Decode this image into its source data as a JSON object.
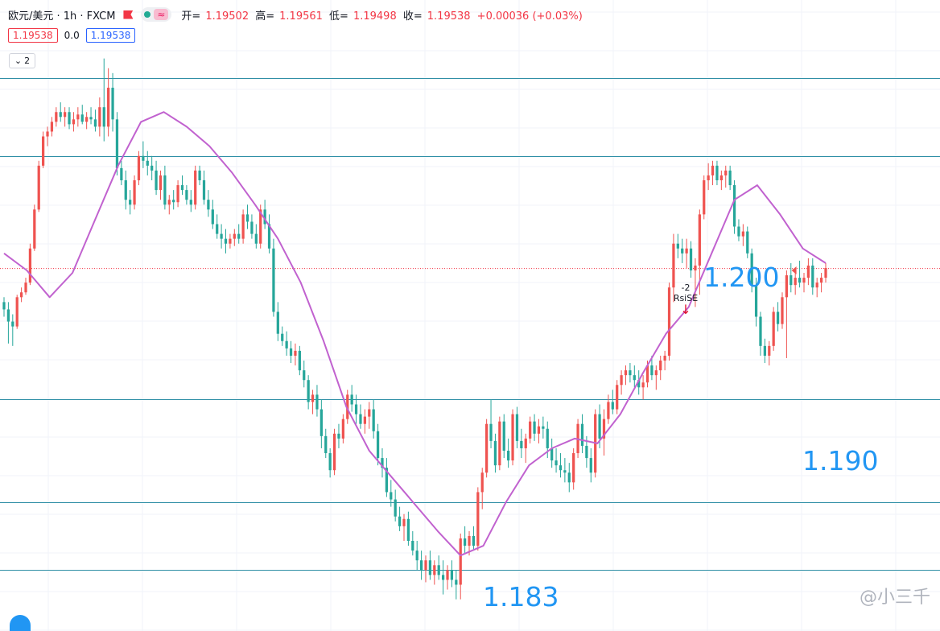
{
  "header": {
    "symbol": "欧元/美元 · 1h · FXCM",
    "open_label": "开=",
    "open": "1.19502",
    "high_label": "高=",
    "high": "1.19561",
    "low_label": "低=",
    "low": "1.19498",
    "close_label": "收=",
    "close": "1.19538",
    "change": "+0.00036 (+0.03%)",
    "bid": "1.19538",
    "spread": "0.0",
    "ask": "1.19538",
    "indicator_count": "2"
  },
  "annotations": {
    "level_1200": "1.200",
    "level_1190": "1.190",
    "level_1183": "1.183",
    "signal_value": "-2",
    "signal_name": "RsiSE",
    "watermark": "@小三千"
  },
  "colors": {
    "up": "#ef5350",
    "down": "#26a69a",
    "ma": "#c162cf",
    "hline": "#2f8fa6",
    "price_line": "#f23645",
    "label": "#2196f3"
  },
  "chart_data": {
    "type": "candlestick",
    "symbol": "EUR/USD",
    "interval": "1h",
    "horizontal_levels": [
      1.2032,
      1.2,
      1.19,
      1.1858,
      1.183
    ],
    "current_price": 1.19538,
    "ylim": [
      1.1805,
      1.2064
    ],
    "grid": true,
    "ma_series": [
      1.196,
      1.1953,
      1.1942,
      1.1952,
      1.1974,
      1.1996,
      1.2014,
      1.2018,
      1.2012,
      1.2004,
      1.1993,
      1.198,
      1.1966,
      1.1948,
      1.1924,
      1.1897,
      1.1879,
      1.1868,
      1.1857,
      1.1846,
      1.1836,
      1.184,
      1.1858,
      1.1873,
      1.188,
      1.1884,
      1.1882,
      1.1894,
      1.1911,
      1.1927,
      1.1938,
      1.196,
      1.1982,
      1.1988,
      1.1976,
      1.1962,
      1.1956
    ],
    "candles_ohlc": [
      [
        1.194,
        1.1942,
        1.1934,
        1.1937
      ],
      [
        1.1937,
        1.194,
        1.1923,
        1.1932
      ],
      [
        1.1932,
        1.1935,
        1.1922,
        1.193
      ],
      [
        1.193,
        1.1943,
        1.1929,
        1.1942
      ],
      [
        1.1942,
        1.1946,
        1.194,
        1.1944
      ],
      [
        1.1944,
        1.195,
        1.1943,
        1.1948
      ],
      [
        1.1948,
        1.1964,
        1.1947,
        1.1962
      ],
      [
        1.1962,
        1.198,
        1.1961,
        1.1978
      ],
      [
        1.1978,
        1.1998,
        1.1977,
        1.1996
      ],
      [
        1.1996,
        1.201,
        1.1995,
        1.2008
      ],
      [
        1.2008,
        1.2012,
        1.2004,
        1.201
      ],
      [
        1.201,
        1.2016,
        1.2008,
        1.2014
      ],
      [
        1.2014,
        1.202,
        1.2012,
        1.2018
      ],
      [
        1.2018,
        1.2022,
        1.2014,
        1.2016
      ],
      [
        1.2016,
        1.202,
        1.2012,
        1.2018
      ],
      [
        1.2018,
        1.202,
        1.2011,
        1.2013
      ],
      [
        1.2013,
        1.2018,
        1.201,
        1.2015
      ],
      [
        1.2015,
        1.202,
        1.2012,
        1.2017
      ],
      [
        1.2017,
        1.2021,
        1.2013,
        1.2014
      ],
      [
        1.2014,
        1.2018,
        1.2011,
        1.2016
      ],
      [
        1.2016,
        1.202,
        1.2013,
        1.2015
      ],
      [
        1.2015,
        1.2019,
        1.201,
        1.2012
      ],
      [
        1.2012,
        1.2024,
        1.2008,
        1.202
      ],
      [
        1.202,
        1.204,
        1.2006,
        1.2012
      ],
      [
        1.2012,
        1.2036,
        1.2008,
        1.2028
      ],
      [
        1.2028,
        1.2034,
        1.201,
        1.2015
      ],
      [
        1.2015,
        1.2018,
        1.1992,
        1.1995
      ],
      [
        1.1995,
        1.1998,
        1.1988,
        1.199
      ],
      [
        1.199,
        1.1994,
        1.1978,
        1.1982
      ],
      [
        1.1982,
        1.1986,
        1.1976,
        1.198
      ],
      [
        1.198,
        1.1992,
        1.1978,
        1.199
      ],
      [
        1.199,
        1.2002,
        1.1988,
        1.2
      ],
      [
        1.2,
        1.2006,
        1.1995,
        1.1998
      ],
      [
        1.1998,
        1.2002,
        1.1992,
        1.1996
      ],
      [
        1.1996,
        1.2,
        1.199,
        1.1994
      ],
      [
        1.1994,
        1.1998,
        1.1984,
        1.1986
      ],
      [
        1.1986,
        1.1994,
        1.1982,
        1.1992
      ],
      [
        1.1992,
        1.1996,
        1.1978,
        1.198
      ],
      [
        1.198,
        1.1984,
        1.1976,
        1.1982
      ],
      [
        1.1982,
        1.1986,
        1.1978,
        1.1981
      ],
      [
        1.1981,
        1.199,
        1.1979,
        1.1988
      ],
      [
        1.1988,
        1.1992,
        1.1984,
        1.1986
      ],
      [
        1.1986,
        1.1988,
        1.198,
        1.1982
      ],
      [
        1.1982,
        1.1986,
        1.1977,
        1.198
      ],
      [
        1.198,
        1.1996,
        1.1978,
        1.1994
      ],
      [
        1.1994,
        1.1996,
        1.1988,
        1.199
      ],
      [
        1.199,
        1.1994,
        1.198,
        1.1982
      ],
      [
        1.1982,
        1.1986,
        1.1975,
        1.1978
      ],
      [
        1.1978,
        1.1982,
        1.197,
        1.1972
      ],
      [
        1.1972,
        1.1976,
        1.1966,
        1.1968
      ],
      [
        1.1968,
        1.1972,
        1.1962,
        1.1966
      ],
      [
        1.1966,
        1.197,
        1.196,
        1.1964
      ],
      [
        1.1964,
        1.1968,
        1.1962,
        1.1966
      ],
      [
        1.1966,
        1.197,
        1.1963,
        1.1968
      ],
      [
        1.1968,
        1.1972,
        1.1964,
        1.1966
      ],
      [
        1.1966,
        1.1978,
        1.1964,
        1.1976
      ],
      [
        1.1976,
        1.198,
        1.197,
        1.1973
      ],
      [
        1.1973,
        1.1976,
        1.1966,
        1.1968
      ],
      [
        1.1968,
        1.1972,
        1.1962,
        1.1964
      ],
      [
        1.1964,
        1.198,
        1.1962,
        1.1978
      ],
      [
        1.1978,
        1.1982,
        1.197,
        1.1972
      ],
      [
        1.1972,
        1.1976,
        1.196,
        1.1962
      ],
      [
        1.1962,
        1.1966,
        1.1934,
        1.1936
      ],
      [
        1.1936,
        1.194,
        1.1924,
        1.1927
      ],
      [
        1.1927,
        1.193,
        1.1922,
        1.1924
      ],
      [
        1.1924,
        1.1928,
        1.1918,
        1.1921
      ],
      [
        1.1921,
        1.1924,
        1.1915,
        1.1918
      ],
      [
        1.1918,
        1.1923,
        1.1914,
        1.192
      ],
      [
        1.192,
        1.1922,
        1.191,
        1.1912
      ],
      [
        1.1912,
        1.1916,
        1.1905,
        1.1908
      ],
      [
        1.1908,
        1.191,
        1.1896,
        1.1899
      ],
      [
        1.1899,
        1.1904,
        1.1894,
        1.1902
      ],
      [
        1.1902,
        1.1906,
        1.1893,
        1.1896
      ],
      [
        1.1896,
        1.19,
        1.188,
        1.1885
      ],
      [
        1.1885,
        1.1888,
        1.1876,
        1.1878
      ],
      [
        1.1878,
        1.188,
        1.1868,
        1.1871
      ],
      [
        1.1871,
        1.1888,
        1.1869,
        1.1886
      ],
      [
        1.1886,
        1.189,
        1.188,
        1.1884
      ],
      [
        1.1884,
        1.1894,
        1.1882,
        1.1892
      ],
      [
        1.1892,
        1.1904,
        1.189,
        1.1902
      ],
      [
        1.1902,
        1.1906,
        1.1895,
        1.1898
      ],
      [
        1.1898,
        1.1902,
        1.189,
        1.1894
      ],
      [
        1.1894,
        1.1898,
        1.1888,
        1.189
      ],
      [
        1.189,
        1.1896,
        1.1886,
        1.1893
      ],
      [
        1.1893,
        1.1899,
        1.1888,
        1.1896
      ],
      [
        1.1896,
        1.19,
        1.1884,
        1.1887
      ],
      [
        1.1887,
        1.189,
        1.1873,
        1.1876
      ],
      [
        1.1876,
        1.188,
        1.1868,
        1.1872
      ],
      [
        1.1872,
        1.1876,
        1.186,
        1.1862
      ],
      [
        1.1862,
        1.1867,
        1.1856,
        1.1859
      ],
      [
        1.1859,
        1.1863,
        1.185,
        1.1852
      ],
      [
        1.1852,
        1.1856,
        1.1846,
        1.1848
      ],
      [
        1.1848,
        1.1853,
        1.1842,
        1.1851
      ],
      [
        1.1851,
        1.1854,
        1.184,
        1.1842
      ],
      [
        1.1842,
        1.1846,
        1.1836,
        1.1838
      ],
      [
        1.1838,
        1.1842,
        1.183,
        1.1834
      ],
      [
        1.1834,
        1.1838,
        1.1826,
        1.183
      ],
      [
        1.183,
        1.1836,
        1.1825,
        1.1834
      ],
      [
        1.1834,
        1.1838,
        1.1826,
        1.1828
      ],
      [
        1.1828,
        1.1834,
        1.1824,
        1.1832
      ],
      [
        1.1832,
        1.1836,
        1.1826,
        1.1828
      ],
      [
        1.1828,
        1.1834,
        1.182,
        1.1826
      ],
      [
        1.1826,
        1.1832,
        1.1822,
        1.183
      ],
      [
        1.183,
        1.1834,
        1.1823,
        1.1826
      ],
      [
        1.1826,
        1.183,
        1.1818,
        1.1824
      ],
      [
        1.1824,
        1.1845,
        1.1818,
        1.1843
      ],
      [
        1.1843,
        1.1848,
        1.1837,
        1.184
      ],
      [
        1.184,
        1.1846,
        1.1836,
        1.1844
      ],
      [
        1.1844,
        1.1848,
        1.1838,
        1.184
      ],
      [
        1.184,
        1.1864,
        1.1838,
        1.1862
      ],
      [
        1.1862,
        1.1872,
        1.1855,
        1.187
      ],
      [
        1.187,
        1.1892,
        1.1868,
        1.189
      ],
      [
        1.189,
        1.19,
        1.188,
        1.1883
      ],
      [
        1.1883,
        1.1886,
        1.187,
        1.1873
      ],
      [
        1.1873,
        1.1893,
        1.1871,
        1.1891
      ],
      [
        1.1891,
        1.1894,
        1.1876,
        1.1879
      ],
      [
        1.1879,
        1.1884,
        1.1872,
        1.1875
      ],
      [
        1.1875,
        1.1896,
        1.1873,
        1.1894
      ],
      [
        1.1894,
        1.1897,
        1.188,
        1.1883
      ],
      [
        1.1883,
        1.1888,
        1.1876,
        1.188
      ],
      [
        1.188,
        1.1886,
        1.1874,
        1.1884
      ],
      [
        1.1884,
        1.1893,
        1.1882,
        1.1891
      ],
      [
        1.1891,
        1.1894,
        1.1883,
        1.1886
      ],
      [
        1.1886,
        1.1892,
        1.1882,
        1.1889
      ],
      [
        1.1889,
        1.1893,
        1.1884,
        1.1888
      ],
      [
        1.1888,
        1.1891,
        1.1876,
        1.188
      ],
      [
        1.188,
        1.1884,
        1.1872,
        1.1875
      ],
      [
        1.1875,
        1.188,
        1.187,
        1.1873
      ],
      [
        1.1873,
        1.1878,
        1.1868,
        1.1871
      ],
      [
        1.1871,
        1.1876,
        1.1866,
        1.187
      ],
      [
        1.187,
        1.1874,
        1.1862,
        1.1866
      ],
      [
        1.1866,
        1.188,
        1.1863,
        1.1878
      ],
      [
        1.1878,
        1.1892,
        1.1876,
        1.189
      ],
      [
        1.189,
        1.1894,
        1.1878,
        1.1881
      ],
      [
        1.1881,
        1.1885,
        1.1872,
        1.1876
      ],
      [
        1.1876,
        1.188,
        1.1866,
        1.187
      ],
      [
        1.187,
        1.1896,
        1.1868,
        1.1894
      ],
      [
        1.1894,
        1.1898,
        1.188,
        1.1884
      ],
      [
        1.1884,
        1.1896,
        1.1877,
        1.1892
      ],
      [
        1.1892,
        1.1902,
        1.189,
        1.1899
      ],
      [
        1.1899,
        1.1904,
        1.1894,
        1.1896
      ],
      [
        1.1896,
        1.1908,
        1.1894,
        1.1906
      ],
      [
        1.1906,
        1.1912,
        1.1902,
        1.191
      ],
      [
        1.191,
        1.1914,
        1.1906,
        1.1912
      ],
      [
        1.1912,
        1.1915,
        1.1907,
        1.191
      ],
      [
        1.191,
        1.1914,
        1.1905,
        1.1908
      ],
      [
        1.1908,
        1.1912,
        1.1902,
        1.1905
      ],
      [
        1.1905,
        1.191,
        1.19,
        1.1907
      ],
      [
        1.1907,
        1.1916,
        1.1905,
        1.1914
      ],
      [
        1.1914,
        1.1918,
        1.1908,
        1.191
      ],
      [
        1.191,
        1.1914,
        1.1904,
        1.1912
      ],
      [
        1.1912,
        1.1918,
        1.1908,
        1.1916
      ],
      [
        1.1916,
        1.192,
        1.1912,
        1.1918
      ],
      [
        1.1918,
        1.1948,
        1.1916,
        1.1946
      ],
      [
        1.1946,
        1.1968,
        1.194,
        1.1964
      ],
      [
        1.1964,
        1.1968,
        1.1958,
        1.1962
      ],
      [
        1.1962,
        1.1966,
        1.1956,
        1.196
      ],
      [
        1.196,
        1.1966,
        1.1954,
        1.1962
      ],
      [
        1.1962,
        1.1965,
        1.195,
        1.1953
      ],
      [
        1.1953,
        1.1958,
        1.1938,
        1.1955
      ],
      [
        1.1955,
        1.1978,
        1.1943,
        1.1976
      ],
      [
        1.1976,
        1.1992,
        1.1974,
        1.199
      ],
      [
        1.199,
        1.1997,
        1.1986,
        1.1992
      ],
      [
        1.1992,
        1.1998,
        1.1988,
        1.1996
      ],
      [
        1.1996,
        1.1998,
        1.1988,
        1.199
      ],
      [
        1.199,
        1.1994,
        1.1986,
        1.1992
      ],
      [
        1.1992,
        1.1996,
        1.1987,
        1.1994
      ],
      [
        1.1994,
        1.1996,
        1.1986,
        1.1988
      ],
      [
        1.1988,
        1.199,
        1.1968,
        1.1971
      ],
      [
        1.1971,
        1.1974,
        1.1965,
        1.1967
      ],
      [
        1.1967,
        1.1972,
        1.1963,
        1.1969
      ],
      [
        1.1969,
        1.1971,
        1.1958,
        1.196
      ],
      [
        1.196,
        1.1962,
        1.1944,
        1.1947
      ],
      [
        1.1947,
        1.195,
        1.193,
        1.1934
      ],
      [
        1.1934,
        1.1936,
        1.1918,
        1.1922
      ],
      [
        1.1922,
        1.1925,
        1.1915,
        1.1918
      ],
      [
        1.1918,
        1.1924,
        1.1914,
        1.1922
      ],
      [
        1.1922,
        1.1938,
        1.192,
        1.1936
      ],
      [
        1.1936,
        1.194,
        1.1928,
        1.1931
      ],
      [
        1.1931,
        1.1944,
        1.1929,
        1.1942
      ],
      [
        1.1942,
        1.1953,
        1.1917,
        1.1951
      ],
      [
        1.1951,
        1.1956,
        1.1944,
        1.1947
      ],
      [
        1.1947,
        1.1952,
        1.1943,
        1.195
      ],
      [
        1.195,
        1.1957,
        1.1946,
        1.1948
      ],
      [
        1.1948,
        1.1952,
        1.1944,
        1.195
      ],
      [
        1.195,
        1.1958,
        1.1947,
        1.1955
      ],
      [
        1.1955,
        1.1958,
        1.1943,
        1.1946
      ],
      [
        1.1946,
        1.195,
        1.1942,
        1.1948
      ],
      [
        1.1948,
        1.1952,
        1.1944,
        1.195
      ],
      [
        1.195,
        1.1956,
        1.1948,
        1.1954
      ]
    ]
  }
}
